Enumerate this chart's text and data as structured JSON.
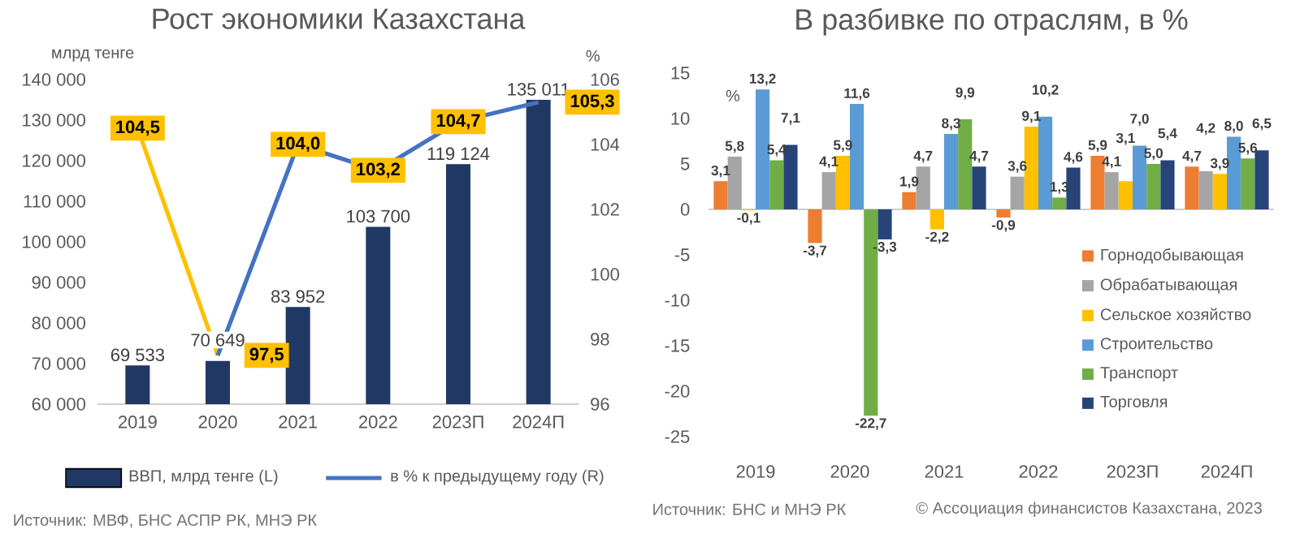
{
  "chart_data": [
    {
      "type": "bar",
      "title": "Рост экономики Казахстана",
      "ylabel": "млрд тенге",
      "y2label": "%",
      "categories": [
        "2019",
        "2020",
        "2021",
        "2022",
        "2023П",
        "2024П"
      ],
      "series": [
        {
          "name": "ВВП, млрд тенге (L)",
          "color": "#203864",
          "values": [
            69533,
            70649,
            83952,
            103700,
            119124,
            135011
          ],
          "value_labels": [
            "69 533",
            "70 649",
            "83 952",
            "103 700",
            "119 124",
            "135 011"
          ]
        },
        {
          "type": "line",
          "axis": "y2",
          "color": "#ffc000",
          "values": [
            104.5,
            97.5,
            null,
            null,
            null,
            null
          ],
          "value_labels": [
            "104,5",
            null,
            null,
            null,
            null,
            null
          ]
        },
        {
          "type": "line",
          "axis": "y2",
          "name": "в % к предыдущему году (R)",
          "color": "#4472c4",
          "values": [
            null,
            97.5,
            104.0,
            103.2,
            104.7,
            105.3
          ],
          "value_labels": [
            null,
            "97,5",
            "104,0",
            "103,2",
            "104,7",
            "105,3"
          ]
        }
      ],
      "ylim": [
        60000,
        140000
      ],
      "yticks": [
        {
          "value": 60000,
          "label": "60 000"
        },
        {
          "value": 70000,
          "label": "70 000"
        },
        {
          "value": 80000,
          "label": "80 000"
        },
        {
          "value": 90000,
          "label": "90 000"
        },
        {
          "value": 100000,
          "label": "100 000"
        },
        {
          "value": 110000,
          "label": "110 000"
        },
        {
          "value": 120000,
          "label": "120 000"
        },
        {
          "value": 130000,
          "label": "130 000"
        },
        {
          "value": 140000,
          "label": "140 000"
        }
      ],
      "y2lim": [
        96,
        106
      ],
      "y2ticks": [
        96,
        98,
        100,
        102,
        104,
        106
      ],
      "legend": "bottom",
      "annotations": [
        "Источник: МВФ, БНС АСПР РК, МНЭ РК"
      ]
    },
    {
      "type": "bar",
      "title": "В разбивке по отраслям, в %",
      "ylabel": "%",
      "categories": [
        "2019",
        "2020",
        "2021",
        "2022",
        "2023П",
        "2024П"
      ],
      "series": [
        {
          "name": "Горнодобывающая",
          "color": "#ed7d31",
          "values": [
            3.1,
            -3.7,
            1.9,
            -0.9,
            5.9,
            4.7
          ],
          "value_labels": [
            "3,1",
            "-3,7",
            "1,9",
            "-0,9",
            "5,9",
            "4,7"
          ]
        },
        {
          "name": "Обрабатывающая",
          "color": "#a5a5a5",
          "values": [
            5.8,
            4.1,
            4.7,
            3.6,
            4.1,
            4.2
          ],
          "value_labels": [
            "5,8",
            "4,1",
            "4,7",
            "3,6",
            "4,1",
            "4,2"
          ]
        },
        {
          "name": "Сельское хозяйство",
          "color": "#ffc000",
          "values": [
            -0.1,
            5.9,
            -2.2,
            9.1,
            3.1,
            3.9
          ],
          "value_labels": [
            "-0,1",
            "5,9",
            "-2,2",
            "9,1",
            "3,1",
            "3,9"
          ]
        },
        {
          "name": "Строительство",
          "color": "#5b9bd5",
          "values": [
            13.2,
            11.6,
            8.3,
            10.2,
            7.0,
            8.0
          ],
          "value_labels": [
            "13,2",
            "11,6",
            "8,3",
            "10,2",
            "7,0",
            "8,0"
          ]
        },
        {
          "name": "Транспорт",
          "color": "#70ad47",
          "values": [
            5.4,
            -22.7,
            9.9,
            1.3,
            5.0,
            5.6
          ],
          "value_labels": [
            "5,4",
            "-22,7",
            "9,9",
            "1,3",
            "5,0",
            "5,6"
          ]
        },
        {
          "name": "Торговля",
          "color": "#264478",
          "values": [
            7.1,
            -3.3,
            4.7,
            4.6,
            5.4,
            6.5
          ],
          "value_labels": [
            "7,1",
            "-3,3",
            "4,7",
            "4,6",
            "5,4",
            "6,5"
          ]
        }
      ],
      "ylim": [
        -25,
        15
      ],
      "yticks": [
        -25,
        -20,
        -15,
        -10,
        -5,
        0,
        5,
        10,
        15
      ],
      "legend": "bottom right",
      "annotations": [
        "Источник: БНС и МНЭ РК",
        "© Ассоциация финансистов Казахстана, 2023"
      ]
    }
  ]
}
